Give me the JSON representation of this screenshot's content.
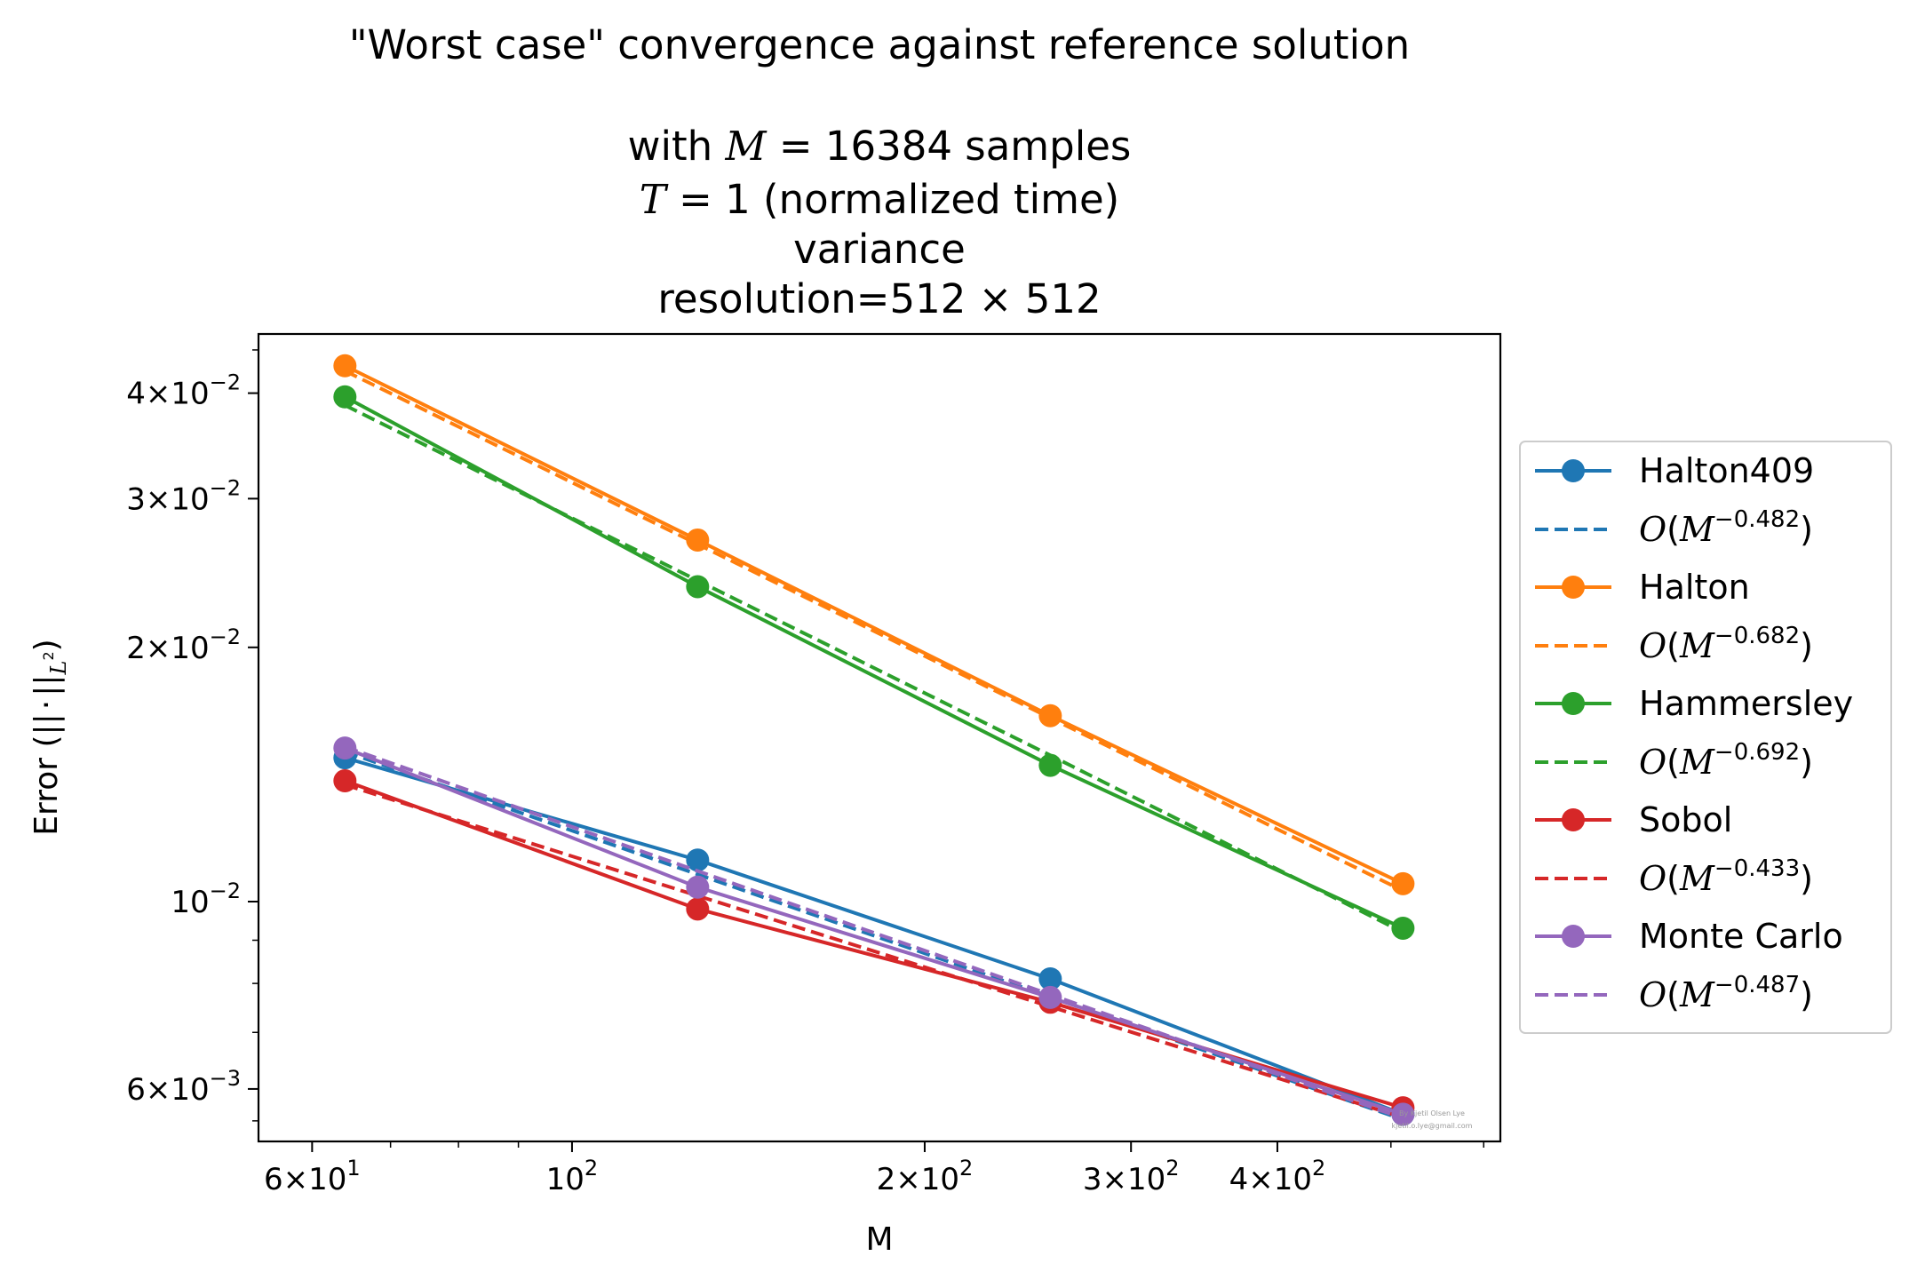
{
  "chart_data": {
    "type": "line",
    "title_lines": [
      "\"Worst case\" convergence against reference solution",
      "",
      "with M = 16384 samples",
      "T = 1 (normalized time)",
      "variance",
      "resolution=512 × 512"
    ],
    "xlabel": "M",
    "ylabel": "Error (||·||_L²)",
    "xscale": "log",
    "yscale": "log",
    "xlim": [
      54,
      620
    ],
    "ylim": [
      0.0052,
      0.047
    ],
    "x": [
      64,
      128,
      256,
      512
    ],
    "x_ticks": [
      {
        "value": 60,
        "mantissa": "6",
        "exp": "1"
      },
      {
        "value": 100,
        "mantissa": "",
        "exp": "2"
      },
      {
        "value": 200,
        "mantissa": "2",
        "exp": "2"
      },
      {
        "value": 300,
        "mantissa": "3",
        "exp": "2"
      },
      {
        "value": 400,
        "mantissa": "4",
        "exp": "2"
      }
    ],
    "y_ticks": [
      {
        "value": 0.04,
        "mantissa": "4",
        "exp": "−2"
      },
      {
        "value": 0.03,
        "mantissa": "3",
        "exp": "−2"
      },
      {
        "value": 0.02,
        "mantissa": "2",
        "exp": "−2"
      },
      {
        "value": 0.01,
        "mantissa": "",
        "exp": "−2"
      },
      {
        "value": 0.006,
        "mantissa": "6",
        "exp": "−3"
      }
    ],
    "legend_position": "right",
    "grid": false,
    "series": [
      {
        "name": "Halton409",
        "color": "#1f77b4",
        "values": [
          0.0148,
          0.0112,
          0.0081,
          0.0056
        ],
        "fit_label_exp": "0.482",
        "fit_values": [
          0.01505,
          0.01077,
          0.00771,
          0.00552
        ]
      },
      {
        "name": "Halton",
        "color": "#ff7f0e",
        "values": [
          0.0431,
          0.0268,
          0.0166,
          0.0105
        ],
        "fit_label_exp": "0.682",
        "fit_values": [
          0.0425,
          0.0265,
          0.0165,
          0.0103
        ]
      },
      {
        "name": "Hammersley",
        "color": "#2ca02c",
        "values": [
          0.0396,
          0.0236,
          0.0145,
          0.0093
        ],
        "fit_label_exp": "0.692",
        "fit_values": [
          0.0387,
          0.024,
          0.0149,
          0.0092
        ]
      },
      {
        "name": "Sobol",
        "color": "#d62728",
        "values": [
          0.0139,
          0.0098,
          0.0076,
          0.0057
        ],
        "fit_label_exp": "0.433",
        "fit_values": [
          0.01375,
          0.01016,
          0.00751,
          0.00555
        ]
      },
      {
        "name": "Monte Carlo",
        "color": "#9467bd",
        "values": [
          0.0152,
          0.0104,
          0.0077,
          0.0056
        ],
        "fit_label_exp": "0.487",
        "fit_values": [
          0.01525,
          0.01087,
          0.00776,
          0.00554
        ]
      }
    ],
    "watermark": [
      "By Kjetil Olsen Lye",
      "kjetil.o.lye@gmail.com"
    ]
  }
}
